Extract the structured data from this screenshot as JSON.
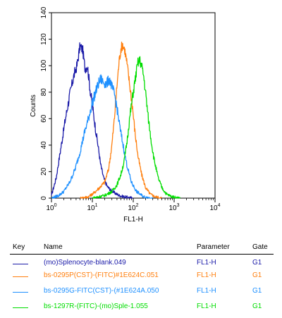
{
  "chart_data": {
    "type": "line",
    "xlabel": "FL1-H",
    "ylabel": "Counts",
    "xscale": "log",
    "xlim": [
      1,
      10000
    ],
    "ylim": [
      0,
      140
    ],
    "yticks": [
      0,
      20,
      40,
      60,
      80,
      100,
      120,
      140
    ],
    "xticks": [
      {
        "value": 1,
        "label": "10",
        "exp": "0"
      },
      {
        "value": 10,
        "label": "10",
        "exp": "1"
      },
      {
        "value": 100,
        "label": "10",
        "exp": "2"
      },
      {
        "value": 1000,
        "label": "10",
        "exp": "3"
      },
      {
        "value": 10000,
        "label": "10",
        "exp": "4"
      }
    ],
    "series": [
      {
        "name": "(mo)Splenocyte-blank.049",
        "color": "#1a1aa8",
        "x": [
          1,
          1.3,
          1.7,
          2.2,
          2.8,
          3.5,
          4.2,
          5,
          5.8,
          6.6,
          7.6,
          8.8,
          10,
          12,
          14,
          16,
          19,
          23,
          28,
          35,
          45,
          60,
          100
        ],
        "y": [
          2,
          15,
          38,
          60,
          78,
          92,
          100,
          115,
          112,
          98,
          100,
          82,
          70,
          52,
          38,
          25,
          15,
          9,
          6,
          4,
          2,
          1,
          0
        ]
      },
      {
        "name": "bs-0295P(CST)-(FITC)#1E624C.051",
        "color": "#ff7f0e",
        "x": [
          5,
          8,
          11,
          15,
          20,
          25,
          30,
          35,
          40,
          45,
          50,
          55,
          62,
          70,
          80,
          95,
          110,
          130,
          160,
          200,
          260,
          350,
          500
        ],
        "y": [
          0,
          1,
          4,
          8,
          12,
          22,
          40,
          62,
          85,
          103,
          113,
          116,
          112,
          102,
          88,
          70,
          50,
          32,
          18,
          8,
          3,
          1,
          0
        ]
      },
      {
        "name": "bs-0295G-FITC(CST)-(#1E624A.050",
        "color": "#1e90ff",
        "x": [
          1,
          1.5,
          2,
          2.8,
          3.8,
          5,
          6.5,
          8,
          10,
          12,
          14,
          16,
          18,
          22,
          26,
          30,
          35,
          40,
          48,
          58,
          70,
          90,
          120,
          180,
          300
        ],
        "y": [
          0,
          2,
          5,
          12,
          22,
          35,
          50,
          60,
          72,
          80,
          86,
          90,
          88,
          86,
          90,
          84,
          78,
          68,
          52,
          38,
          25,
          12,
          5,
          1,
          0
        ]
      },
      {
        "name": "bs-1297R-(FITC)-(mo)Sple-1.055",
        "color": "#00dd00",
        "x": [
          10,
          20,
          30,
          40,
          50,
          60,
          70,
          80,
          90,
          100,
          110,
          120,
          130,
          145,
          160,
          180,
          200,
          230,
          270,
          320,
          400,
          500,
          650,
          900,
          1400
        ],
        "y": [
          0,
          2,
          5,
          10,
          18,
          28,
          42,
          58,
          70,
          80,
          88,
          96,
          102,
          104,
          100,
          92,
          80,
          62,
          45,
          30,
          16,
          8,
          3,
          1,
          0
        ]
      }
    ]
  },
  "legend": {
    "header": {
      "key": "Key",
      "name": "Name",
      "parameter": "Parameter",
      "gate": "Gate"
    },
    "rows": [
      {
        "name": "(mo)Splenocyte-blank.049",
        "parameter": "FL1-H",
        "gate": "G1",
        "color": "#1a1aa8"
      },
      {
        "name": "bs-0295P(CST)-(FITC)#1E624C.051",
        "parameter": "FL1-H",
        "gate": "G1",
        "color": "#ff7f0e"
      },
      {
        "name": "bs-0295G-FITC(CST)-(#1E624A.050",
        "parameter": "FL1-H",
        "gate": "G1",
        "color": "#1e90ff"
      },
      {
        "name": "bs-1297R-(FITC)-(mo)Sple-1.055",
        "parameter": "FL1-H",
        "gate": "G1",
        "color": "#00dd00"
      }
    ]
  }
}
